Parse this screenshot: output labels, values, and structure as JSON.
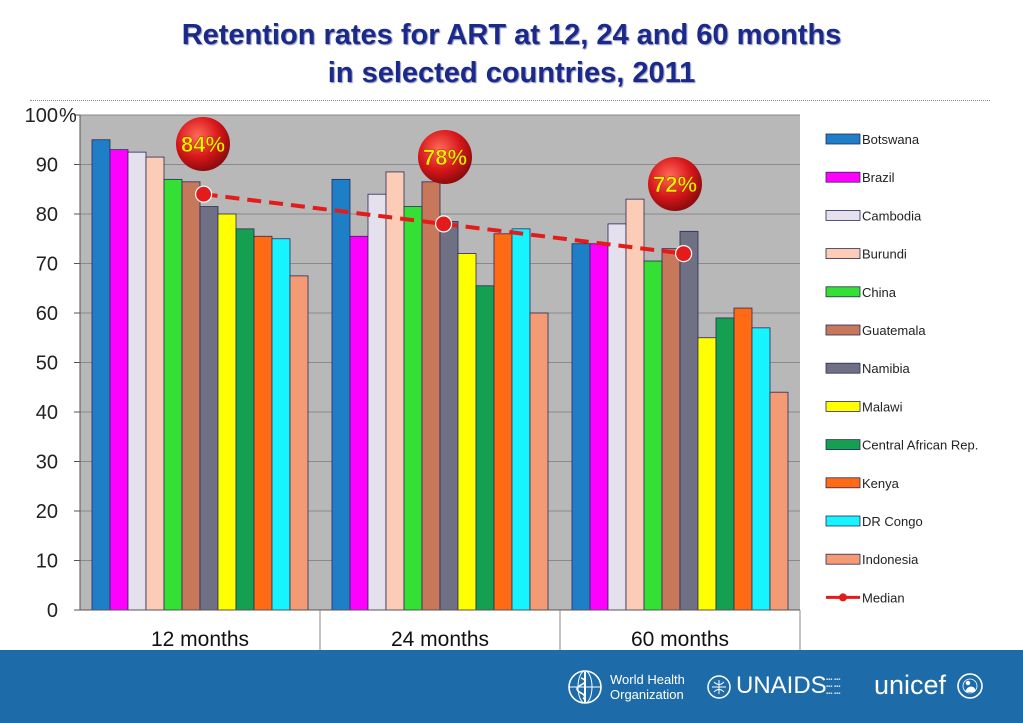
{
  "title_line1": "Retention rates for ART at 12, 24 and 60 months",
  "title_line2": "in selected countries, 2011",
  "chart_data": {
    "type": "bar",
    "categories": [
      "12 months",
      "24 months",
      "60 months"
    ],
    "ylim": [
      0,
      100
    ],
    "yticks": [
      "0",
      "10",
      "20",
      "30",
      "40",
      "50",
      "60",
      "70",
      "80",
      "90",
      "100"
    ],
    "y_unit_label": "%",
    "grid": true,
    "legend_position": "right",
    "plot_background": "#b8b8b8",
    "series": [
      {
        "name": "Botswana",
        "color": "#1f7fc6",
        "values": [
          95,
          87,
          74
        ]
      },
      {
        "name": "Brazil",
        "color": "#ff00ff",
        "values": [
          93,
          75.5,
          74
        ]
      },
      {
        "name": "Cambodia",
        "color": "#e4e0ee",
        "values": [
          92.5,
          84,
          78
        ]
      },
      {
        "name": "Burundi",
        "color": "#fcccb6",
        "values": [
          91.5,
          88.5,
          83
        ]
      },
      {
        "name": "China",
        "color": "#33e033",
        "values": [
          87,
          81.5,
          70.5
        ]
      },
      {
        "name": "Guatemala",
        "color": "#c8785a",
        "values": [
          86.5,
          86.5,
          73
        ]
      },
      {
        "name": "Namibia",
        "color": "#707084",
        "values": [
          81.5,
          78.5,
          76.5
        ]
      },
      {
        "name": "Malawi",
        "color": "#ffff00",
        "values": [
          80,
          72,
          55
        ]
      },
      {
        "name": "Central African Rep.",
        "color": "#14a050",
        "values": [
          77,
          65.5,
          59
        ]
      },
      {
        "name": "Kenya",
        "color": "#ff6a14",
        "values": [
          75.5,
          76,
          61
        ]
      },
      {
        "name": "DR Congo",
        "color": "#18f4ff",
        "values": [
          75,
          77,
          57
        ]
      },
      {
        "name": "Indonesia",
        "color": "#f49a74",
        "values": [
          67.5,
          60,
          44
        ]
      }
    ],
    "median": {
      "name": "Median",
      "color": "#e31b1b",
      "values": [
        84,
        78,
        72
      ]
    },
    "annotations": [
      "84%",
      "78%",
      "72%"
    ]
  },
  "footer": {
    "who_line1": "World Health",
    "who_line2": "Organization",
    "unaids": "UNAIDS",
    "unicef": "unicef",
    "background": "#1d6ba8"
  }
}
